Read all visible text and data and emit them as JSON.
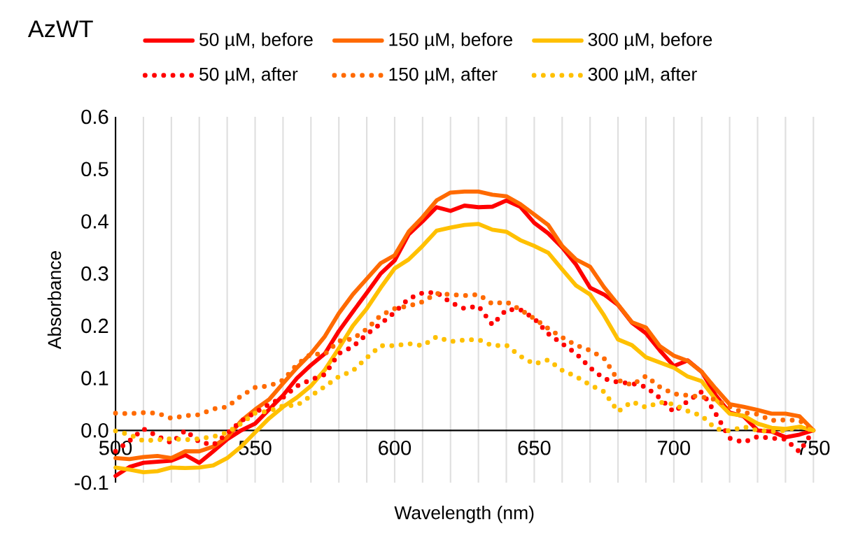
{
  "chart_data": {
    "type": "line",
    "title": "AzWT",
    "xlabel": "Wavelength (nm)",
    "ylabel": "Absorbance",
    "x": [
      500,
      505,
      510,
      515,
      520,
      525,
      530,
      535,
      540,
      545,
      550,
      555,
      560,
      565,
      570,
      575,
      580,
      585,
      590,
      595,
      600,
      605,
      610,
      615,
      620,
      625,
      630,
      635,
      640,
      645,
      650,
      655,
      660,
      665,
      670,
      675,
      680,
      685,
      690,
      695,
      700,
      705,
      710,
      715,
      720,
      725,
      730,
      735,
      740,
      745,
      750
    ],
    "series": [
      {
        "name": "50 µM, before",
        "color": "#ff0000",
        "line_style": "solid",
        "values": [
          -0.087,
          -0.07,
          -0.062,
          -0.06,
          -0.058,
          -0.047,
          -0.062,
          -0.04,
          -0.017,
          0.0,
          0.013,
          0.04,
          0.067,
          0.1,
          0.125,
          0.147,
          0.19,
          0.227,
          0.263,
          0.3,
          0.325,
          0.375,
          0.4,
          0.427,
          0.42,
          0.43,
          0.427,
          0.428,
          0.44,
          0.428,
          0.397,
          0.377,
          0.35,
          0.317,
          0.273,
          0.26,
          0.24,
          0.206,
          0.186,
          0.153,
          0.123,
          0.134,
          0.112,
          0.067,
          0.034,
          0.027,
          0.0,
          -0.002,
          -0.013,
          -0.008,
          0.0
        ]
      },
      {
        "name": "150 µM, before",
        "color": "#ff6a00",
        "line_style": "solid",
        "values": [
          -0.053,
          -0.055,
          -0.051,
          -0.049,
          -0.053,
          -0.04,
          -0.04,
          -0.031,
          -0.013,
          0.018,
          0.04,
          0.059,
          0.09,
          0.12,
          0.147,
          0.18,
          0.224,
          0.26,
          0.29,
          0.32,
          0.335,
          0.38,
          0.408,
          0.44,
          0.455,
          0.457,
          0.457,
          0.451,
          0.448,
          0.433,
          0.413,
          0.393,
          0.353,
          0.327,
          0.313,
          0.274,
          0.241,
          0.207,
          0.197,
          0.161,
          0.143,
          0.133,
          0.112,
          0.08,
          0.05,
          0.045,
          0.039,
          0.032,
          0.032,
          0.027,
          0.0
        ]
      },
      {
        "name": "300 µM, before",
        "color": "#ffc000",
        "line_style": "solid",
        "values": [
          -0.071,
          -0.075,
          -0.08,
          -0.078,
          -0.071,
          -0.072,
          -0.071,
          -0.067,
          -0.053,
          -0.031,
          -0.004,
          0.023,
          0.045,
          0.063,
          0.085,
          0.116,
          0.157,
          0.2,
          0.233,
          0.273,
          0.31,
          0.327,
          0.353,
          0.382,
          0.388,
          0.393,
          0.395,
          0.384,
          0.38,
          0.364,
          0.353,
          0.34,
          0.308,
          0.277,
          0.26,
          0.22,
          0.174,
          0.163,
          0.14,
          0.13,
          0.12,
          0.103,
          0.094,
          0.059,
          0.032,
          0.028,
          0.013,
          0.005,
          0.003,
          0.007,
          0.0
        ]
      },
      {
        "name": "50 µM, after",
        "color": "#ff0000",
        "line_style": "dotted",
        "values": [
          -0.04,
          -0.02,
          0.003,
          -0.011,
          -0.024,
          0.0,
          -0.022,
          -0.028,
          -0.006,
          0.018,
          0.034,
          0.05,
          0.063,
          0.085,
          0.097,
          0.107,
          0.147,
          0.16,
          0.184,
          0.204,
          0.226,
          0.252,
          0.263,
          0.264,
          0.245,
          0.233,
          0.238,
          0.202,
          0.231,
          0.231,
          0.214,
          0.185,
          0.166,
          0.147,
          0.12,
          0.099,
          0.092,
          0.09,
          0.083,
          0.062,
          0.035,
          0.056,
          0.074,
          0.032,
          -0.015,
          -0.023,
          -0.012,
          -0.015,
          -0.017,
          -0.041,
          0.0
        ]
      },
      {
        "name": "150 µM, after",
        "color": "#ff6a00",
        "line_style": "dotted",
        "values": [
          0.033,
          0.032,
          0.034,
          0.033,
          0.023,
          0.028,
          0.03,
          0.041,
          0.045,
          0.066,
          0.082,
          0.085,
          0.096,
          0.126,
          0.146,
          0.146,
          0.171,
          0.175,
          0.194,
          0.22,
          0.233,
          0.238,
          0.246,
          0.262,
          0.26,
          0.258,
          0.26,
          0.242,
          0.246,
          0.231,
          0.214,
          0.195,
          0.178,
          0.163,
          0.153,
          0.138,
          0.096,
          0.087,
          0.104,
          0.083,
          0.07,
          0.067,
          0.064,
          0.059,
          0.045,
          0.034,
          0.031,
          0.019,
          0.02,
          0.019,
          0.0
        ]
      },
      {
        "name": "300 µM, after",
        "color": "#ffc000",
        "line_style": "dotted",
        "values": [
          -0.001,
          -0.008,
          -0.02,
          -0.018,
          -0.016,
          -0.018,
          -0.016,
          -0.012,
          -0.004,
          0.013,
          0.033,
          0.037,
          0.047,
          0.048,
          0.066,
          0.084,
          0.103,
          0.114,
          0.139,
          0.162,
          0.162,
          0.166,
          0.162,
          0.179,
          0.17,
          0.173,
          0.174,
          0.162,
          0.163,
          0.142,
          0.127,
          0.135,
          0.115,
          0.103,
          0.087,
          0.074,
          0.036,
          0.055,
          0.044,
          0.054,
          0.05,
          0.037,
          0.028,
          0.003,
          -0.001,
          0.007,
          0.0,
          -0.002,
          0.0,
          0.007,
          0.0
        ]
      }
    ],
    "xlim": [
      500,
      750
    ],
    "xticks": [
      500,
      {
        "value": 510,
        "label": null
      },
      {
        "value": 520,
        "label": null
      },
      {
        "value": 530,
        "label": null
      },
      {
        "value": 540,
        "label": null
      },
      550,
      {
        "value": 560,
        "label": null
      },
      {
        "value": 570,
        "label": null
      },
      {
        "value": 580,
        "label": null
      },
      {
        "value": 590,
        "label": null
      },
      600,
      {
        "value": 610,
        "label": null
      },
      {
        "value": 620,
        "label": null
      },
      {
        "value": 630,
        "label": null
      },
      {
        "value": 640,
        "label": null
      },
      650,
      {
        "value": 660,
        "label": null
      },
      {
        "value": 670,
        "label": null
      },
      {
        "value": 680,
        "label": null
      },
      {
        "value": 690,
        "label": null
      },
      700,
      {
        "value": 710,
        "label": null
      },
      {
        "value": 720,
        "label": null
      },
      {
        "value": 730,
        "label": null
      },
      {
        "value": 740,
        "label": null
      },
      750
    ],
    "ylim": [
      -0.1,
      0.6
    ],
    "yticks": [
      -0.1,
      {
        "value": 0,
        "label": "0.0"
      },
      0.1,
      0.2,
      0.3,
      0.4,
      0.5,
      0.6
    ],
    "grid": "x",
    "legend": "top",
    "marker": "none"
  }
}
